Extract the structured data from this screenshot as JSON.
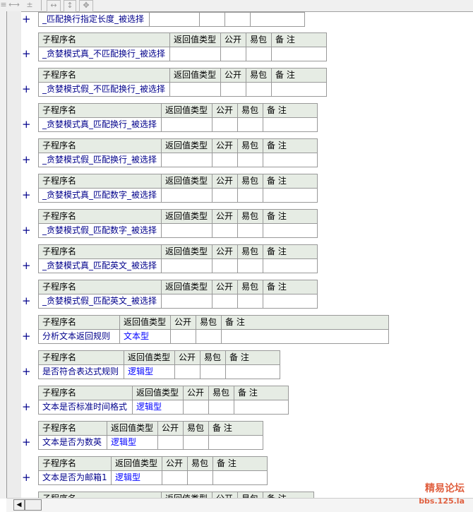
{
  "toolbar": {
    "icons": [
      "align-icon",
      "width-equal-icon",
      "height-equal-icon",
      "size-equal-width-icon",
      "size-equal-height-icon",
      "size-equal-both-icon"
    ]
  },
  "header_labels": {
    "name": "子程序名",
    "return_type": "返回值类型",
    "public": "公开",
    "easy_pack": "易包",
    "remark": "备 注"
  },
  "expand_symbol": "+",
  "subroutines": [
    {
      "name": "_匹配换行指定长度_被选择",
      "return_type": "",
      "header_visible": false
    },
    {
      "name": "_贪婪模式真_不匹配换行_被选择",
      "return_type": ""
    },
    {
      "name": "_贪婪模式假_不匹配换行_被选择",
      "return_type": ""
    },
    {
      "name": "_贪婪模式真_匹配换行_被选择",
      "return_type": ""
    },
    {
      "name": "_贪婪模式假_匹配换行_被选择",
      "return_type": ""
    },
    {
      "name": "_贪婪模式真_匹配数字_被选择",
      "return_type": ""
    },
    {
      "name": "_贪婪模式假_匹配数字_被选择",
      "return_type": ""
    },
    {
      "name": "_贪婪模式真_匹配英文_被选择",
      "return_type": ""
    },
    {
      "name": "_贪婪模式假_匹配英文_被选择",
      "return_type": ""
    },
    {
      "name": "分析文本返回规则",
      "return_type": "文本型"
    },
    {
      "name": "是否符合表达式规则",
      "return_type": "逻辑型"
    },
    {
      "name": "文本是否标准时间格式",
      "return_type": "逻辑型"
    },
    {
      "name": "文本是否为数英",
      "return_type": "逻辑型"
    },
    {
      "name": "文本是否为邮箱1",
      "return_type": "逻辑型"
    },
    {
      "name": "",
      "return_type": "",
      "partial": true
    }
  ],
  "watermark": {
    "line1": "精易论坛",
    "line2": "bbs.125.la"
  }
}
